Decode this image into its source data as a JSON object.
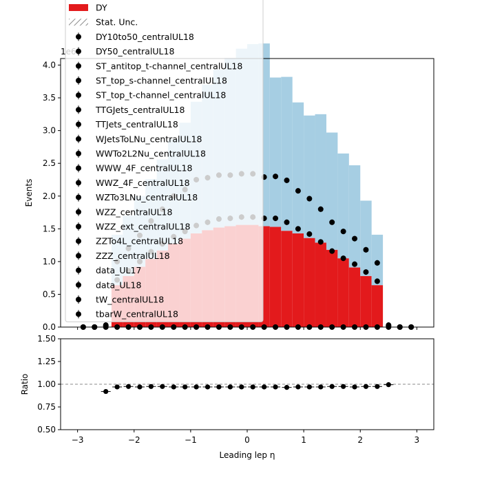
{
  "chart_data": [
    {
      "type": "bar",
      "panel": "main",
      "ylabel": "Events",
      "y_scale_label": "1e6",
      "ylim": [
        0,
        4.1
      ],
      "yticks": [
        0.0,
        0.5,
        1.0,
        1.5,
        2.0,
        2.5,
        3.0,
        3.5,
        4.0
      ],
      "ytick_labels": [
        "0.0",
        "0.5",
        "1.0",
        "1.5",
        "2.0",
        "2.5",
        "3.0",
        "3.5",
        "4.0"
      ],
      "xlim": [
        -3.3,
        3.3
      ],
      "xticks": [
        -3,
        -2,
        -1,
        0,
        1,
        2,
        3
      ],
      "xtick_labels": [
        "−3",
        "−2",
        "−1",
        "0",
        "1",
        "2",
        "3"
      ],
      "bin_edges": [
        -2.4,
        -2.2,
        -2.0,
        -1.8,
        -1.6,
        -1.4,
        -1.2,
        -1.0,
        -0.8,
        -0.6,
        -0.4,
        -0.2,
        0.0,
        0.2,
        0.4,
        0.6,
        0.8,
        1.0,
        1.2,
        1.4,
        1.6,
        1.8,
        2.0,
        2.2,
        2.4
      ],
      "series": [
        {
          "name": "DY",
          "color": "#e31a1c",
          "values": [
            0.64,
            0.78,
            0.92,
            1.04,
            1.17,
            1.27,
            1.35,
            1.43,
            1.48,
            1.52,
            1.54,
            1.56,
            1.56,
            1.54,
            1.53,
            1.47,
            1.43,
            1.36,
            1.29,
            1.18,
            1.05,
            0.91,
            0.78,
            0.64
          ]
        },
        {
          "name": "",
          "color": "#a6cee3",
          "values": [
            0.77,
            0.92,
            1.08,
            1.22,
            1.39,
            1.6,
            1.77,
            2.01,
            2.22,
            2.41,
            2.57,
            2.69,
            2.76,
            2.79,
            2.28,
            2.35,
            2.0,
            1.87,
            1.96,
            1.79,
            1.6,
            1.56,
            1.15,
            0.77
          ]
        }
      ],
      "data_points": {
        "name": "data_UL18",
        "x": [
          -2.9,
          -2.7,
          -2.5,
          -2.3,
          -2.1,
          -1.9,
          -1.7,
          -1.5,
          -1.3,
          -1.1,
          -0.9,
          -0.7,
          -0.5,
          -0.3,
          -0.1,
          0.1,
          0.3,
          0.5,
          0.7,
          0.9,
          1.1,
          1.3,
          1.5,
          1.7,
          1.9,
          2.1,
          2.3,
          2.5,
          2.7,
          2.9
        ],
        "y": [
          0.0,
          0.0,
          0.03,
          1.0,
          1.2,
          1.4,
          1.62,
          1.8,
          2.0,
          2.1,
          2.25,
          2.28,
          2.32,
          2.32,
          2.34,
          2.34,
          2.29,
          2.3,
          2.24,
          2.08,
          1.96,
          1.8,
          1.6,
          1.46,
          1.35,
          1.18,
          0.98,
          0.03,
          0.0,
          0.0
        ]
      },
      "data_points_2": {
        "name": "data_UL17",
        "x": [
          -2.9,
          -2.7,
          -2.5,
          -2.3,
          -2.1,
          -1.9,
          -1.7,
          -1.5,
          -1.3,
          -1.1,
          -0.9,
          -0.7,
          -0.5,
          -0.3,
          -0.1,
          0.1,
          0.3,
          0.5,
          0.7,
          0.9,
          1.1,
          1.3,
          1.5,
          1.7,
          1.9,
          2.1,
          2.3,
          2.5,
          2.7,
          2.9
        ],
        "y": [
          0.0,
          0.0,
          0.02,
          0.72,
          0.86,
          1.0,
          1.15,
          1.27,
          1.38,
          1.46,
          1.55,
          1.6,
          1.65,
          1.66,
          1.68,
          1.68,
          1.66,
          1.66,
          1.6,
          1.5,
          1.42,
          1.3,
          1.16,
          1.05,
          0.96,
          0.84,
          0.7,
          0.02,
          0.0,
          0.0
        ]
      },
      "data_points_zero": {
        "x": [
          -2.7,
          -2.5,
          -2.3,
          -2.1,
          -1.9,
          -1.7,
          -1.5,
          -1.3,
          -1.1,
          -0.9,
          -0.7,
          -0.5,
          -0.3,
          -0.1,
          0.1,
          0.3,
          0.5,
          0.7,
          0.9,
          1.1,
          1.3,
          1.5,
          1.7,
          1.9,
          2.1,
          2.3,
          2.5,
          2.7
        ],
        "y": [
          0,
          0,
          0,
          0,
          0,
          0,
          0,
          0,
          0,
          0,
          0,
          0,
          0,
          0,
          0,
          0,
          0,
          0,
          0,
          0,
          0,
          0,
          0,
          0,
          0,
          0,
          0,
          0
        ]
      },
      "legend": {
        "placement": "top-left",
        "entries": [
          {
            "label": "DY",
            "marker": "patch",
            "color": "#e31a1c"
          },
          {
            "label": "Stat. Unc.",
            "marker": "hatch",
            "color": "#888888"
          },
          {
            "label": "DY10to50_centralUL18",
            "marker": "errorbar"
          },
          {
            "label": "DY50_centralUL18",
            "marker": "errorbar"
          },
          {
            "label": "ST_antitop_t-channel_centralUL18",
            "marker": "errorbar"
          },
          {
            "label": "ST_top_s-channel_centralUL18",
            "marker": "errorbar"
          },
          {
            "label": "ST_top_t-channel_centralUL18",
            "marker": "errorbar"
          },
          {
            "label": "TTGJets_centralUL18",
            "marker": "errorbar"
          },
          {
            "label": "TTJets_centralUL18",
            "marker": "errorbar"
          },
          {
            "label": "WJetsToLNu_centralUL18",
            "marker": "errorbar"
          },
          {
            "label": "WWTo2L2Nu_centralUL18",
            "marker": "errorbar"
          },
          {
            "label": "WWW_4F_centralUL18",
            "marker": "errorbar"
          },
          {
            "label": "WWZ_4F_centralUL18",
            "marker": "errorbar"
          },
          {
            "label": "WZTo3LNu_centralUL18",
            "marker": "errorbar"
          },
          {
            "label": "WZZ_centralUL18",
            "marker": "errorbar"
          },
          {
            "label": "WZZ_ext_centralUL18",
            "marker": "errorbar"
          },
          {
            "label": "ZZTo4L_centralUL18",
            "marker": "errorbar"
          },
          {
            "label": "ZZZ_centralUL18",
            "marker": "errorbar"
          },
          {
            "label": "data_UL17",
            "marker": "dot"
          },
          {
            "label": "data_UL18",
            "marker": "dot"
          },
          {
            "label": "tW_centralUL18",
            "marker": "errorbar"
          },
          {
            "label": "tbarW_centralUL18",
            "marker": "errorbar"
          }
        ]
      },
      "grid": false
    },
    {
      "type": "scatter",
      "panel": "ratio",
      "ylabel": "Ratio",
      "xlabel": "Leading lep η",
      "ylim": [
        0.5,
        1.5
      ],
      "yticks": [
        0.5,
        0.75,
        1.0,
        1.25,
        1.5
      ],
      "ytick_labels": [
        "0.50",
        "0.75",
        "1.00",
        "1.25",
        "1.50"
      ],
      "reference_line": 1.0,
      "x": [
        -2.5,
        -2.3,
        -2.1,
        -1.9,
        -1.7,
        -1.5,
        -1.3,
        -1.1,
        -0.9,
        -0.7,
        -0.5,
        -0.3,
        -0.1,
        0.1,
        0.3,
        0.5,
        0.7,
        0.9,
        1.1,
        1.3,
        1.5,
        1.7,
        1.9,
        2.1,
        2.3,
        2.5
      ],
      "y": [
        0.92,
        0.97,
        0.975,
        0.97,
        0.975,
        0.975,
        0.97,
        0.97,
        0.97,
        0.97,
        0.97,
        0.97,
        0.97,
        0.97,
        0.97,
        0.97,
        0.965,
        0.97,
        0.97,
        0.97,
        0.975,
        0.975,
        0.97,
        0.975,
        0.975,
        0.995
      ]
    }
  ]
}
